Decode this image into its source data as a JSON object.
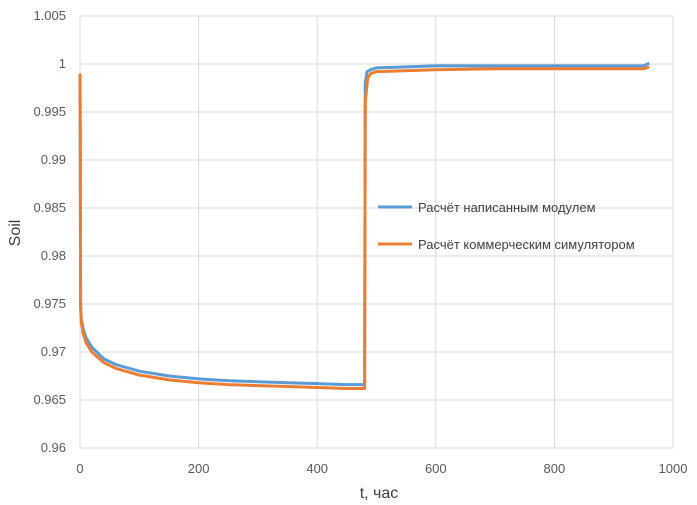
{
  "chart_data": {
    "type": "line",
    "title": "",
    "xlabel": "t, час",
    "ylabel": "Soil",
    "xlim": [
      0,
      1000
    ],
    "ylim": [
      0.96,
      1.005
    ],
    "x_ticks": [
      "0",
      "200",
      "400",
      "600",
      "800",
      "1000"
    ],
    "y_ticks": [
      "0.96",
      "0.965",
      "0.97",
      "0.975",
      "0.98",
      "0.985",
      "0.99",
      "0.995",
      "1",
      "1.005"
    ],
    "grid": true,
    "legend_position": "right",
    "series": [
      {
        "name": "Расчёт написанным модулем",
        "color": "#5B9BD5",
        "points": [
          [
            0,
            0.999
          ],
          [
            0.5,
            0.99
          ],
          [
            1,
            0.975
          ],
          [
            2,
            0.9735
          ],
          [
            5,
            0.9725
          ],
          [
            10,
            0.9715
          ],
          [
            20,
            0.9705
          ],
          [
            40,
            0.9693
          ],
          [
            60,
            0.9687
          ],
          [
            100,
            0.968
          ],
          [
            150,
            0.9675
          ],
          [
            200,
            0.9672
          ],
          [
            250,
            0.967
          ],
          [
            300,
            0.9669
          ],
          [
            350,
            0.9668
          ],
          [
            400,
            0.9667
          ],
          [
            450,
            0.9666
          ],
          [
            480,
            0.9666
          ],
          [
            481,
            0.998
          ],
          [
            484,
            0.9992
          ],
          [
            490,
            0.9994
          ],
          [
            500,
            0.9996
          ],
          [
            600,
            0.9998
          ],
          [
            700,
            0.9998
          ],
          [
            800,
            0.9998
          ],
          [
            900,
            0.9998
          ],
          [
            950,
            0.9998
          ],
          [
            960,
            1.0001
          ]
        ]
      },
      {
        "name": "Расчёт коммерческим симулятором",
        "color": "#ED7D31",
        "points": [
          [
            0,
            0.999
          ],
          [
            0.5,
            0.99
          ],
          [
            1,
            0.975
          ],
          [
            2,
            0.9732
          ],
          [
            5,
            0.972
          ],
          [
            10,
            0.971
          ],
          [
            20,
            0.97
          ],
          [
            40,
            0.9689
          ],
          [
            60,
            0.9683
          ],
          [
            100,
            0.9676
          ],
          [
            150,
            0.9671
          ],
          [
            200,
            0.9668
          ],
          [
            250,
            0.9666
          ],
          [
            300,
            0.9665
          ],
          [
            350,
            0.9664
          ],
          [
            400,
            0.9663
          ],
          [
            450,
            0.9662
          ],
          [
            480,
            0.9662
          ],
          [
            481,
            0.996
          ],
          [
            485,
            0.9985
          ],
          [
            490,
            0.999
          ],
          [
            500,
            0.9992
          ],
          [
            600,
            0.9994
          ],
          [
            700,
            0.9995
          ],
          [
            800,
            0.9995
          ],
          [
            900,
            0.9995
          ],
          [
            950,
            0.9995
          ],
          [
            960,
            0.9997
          ]
        ]
      }
    ]
  }
}
